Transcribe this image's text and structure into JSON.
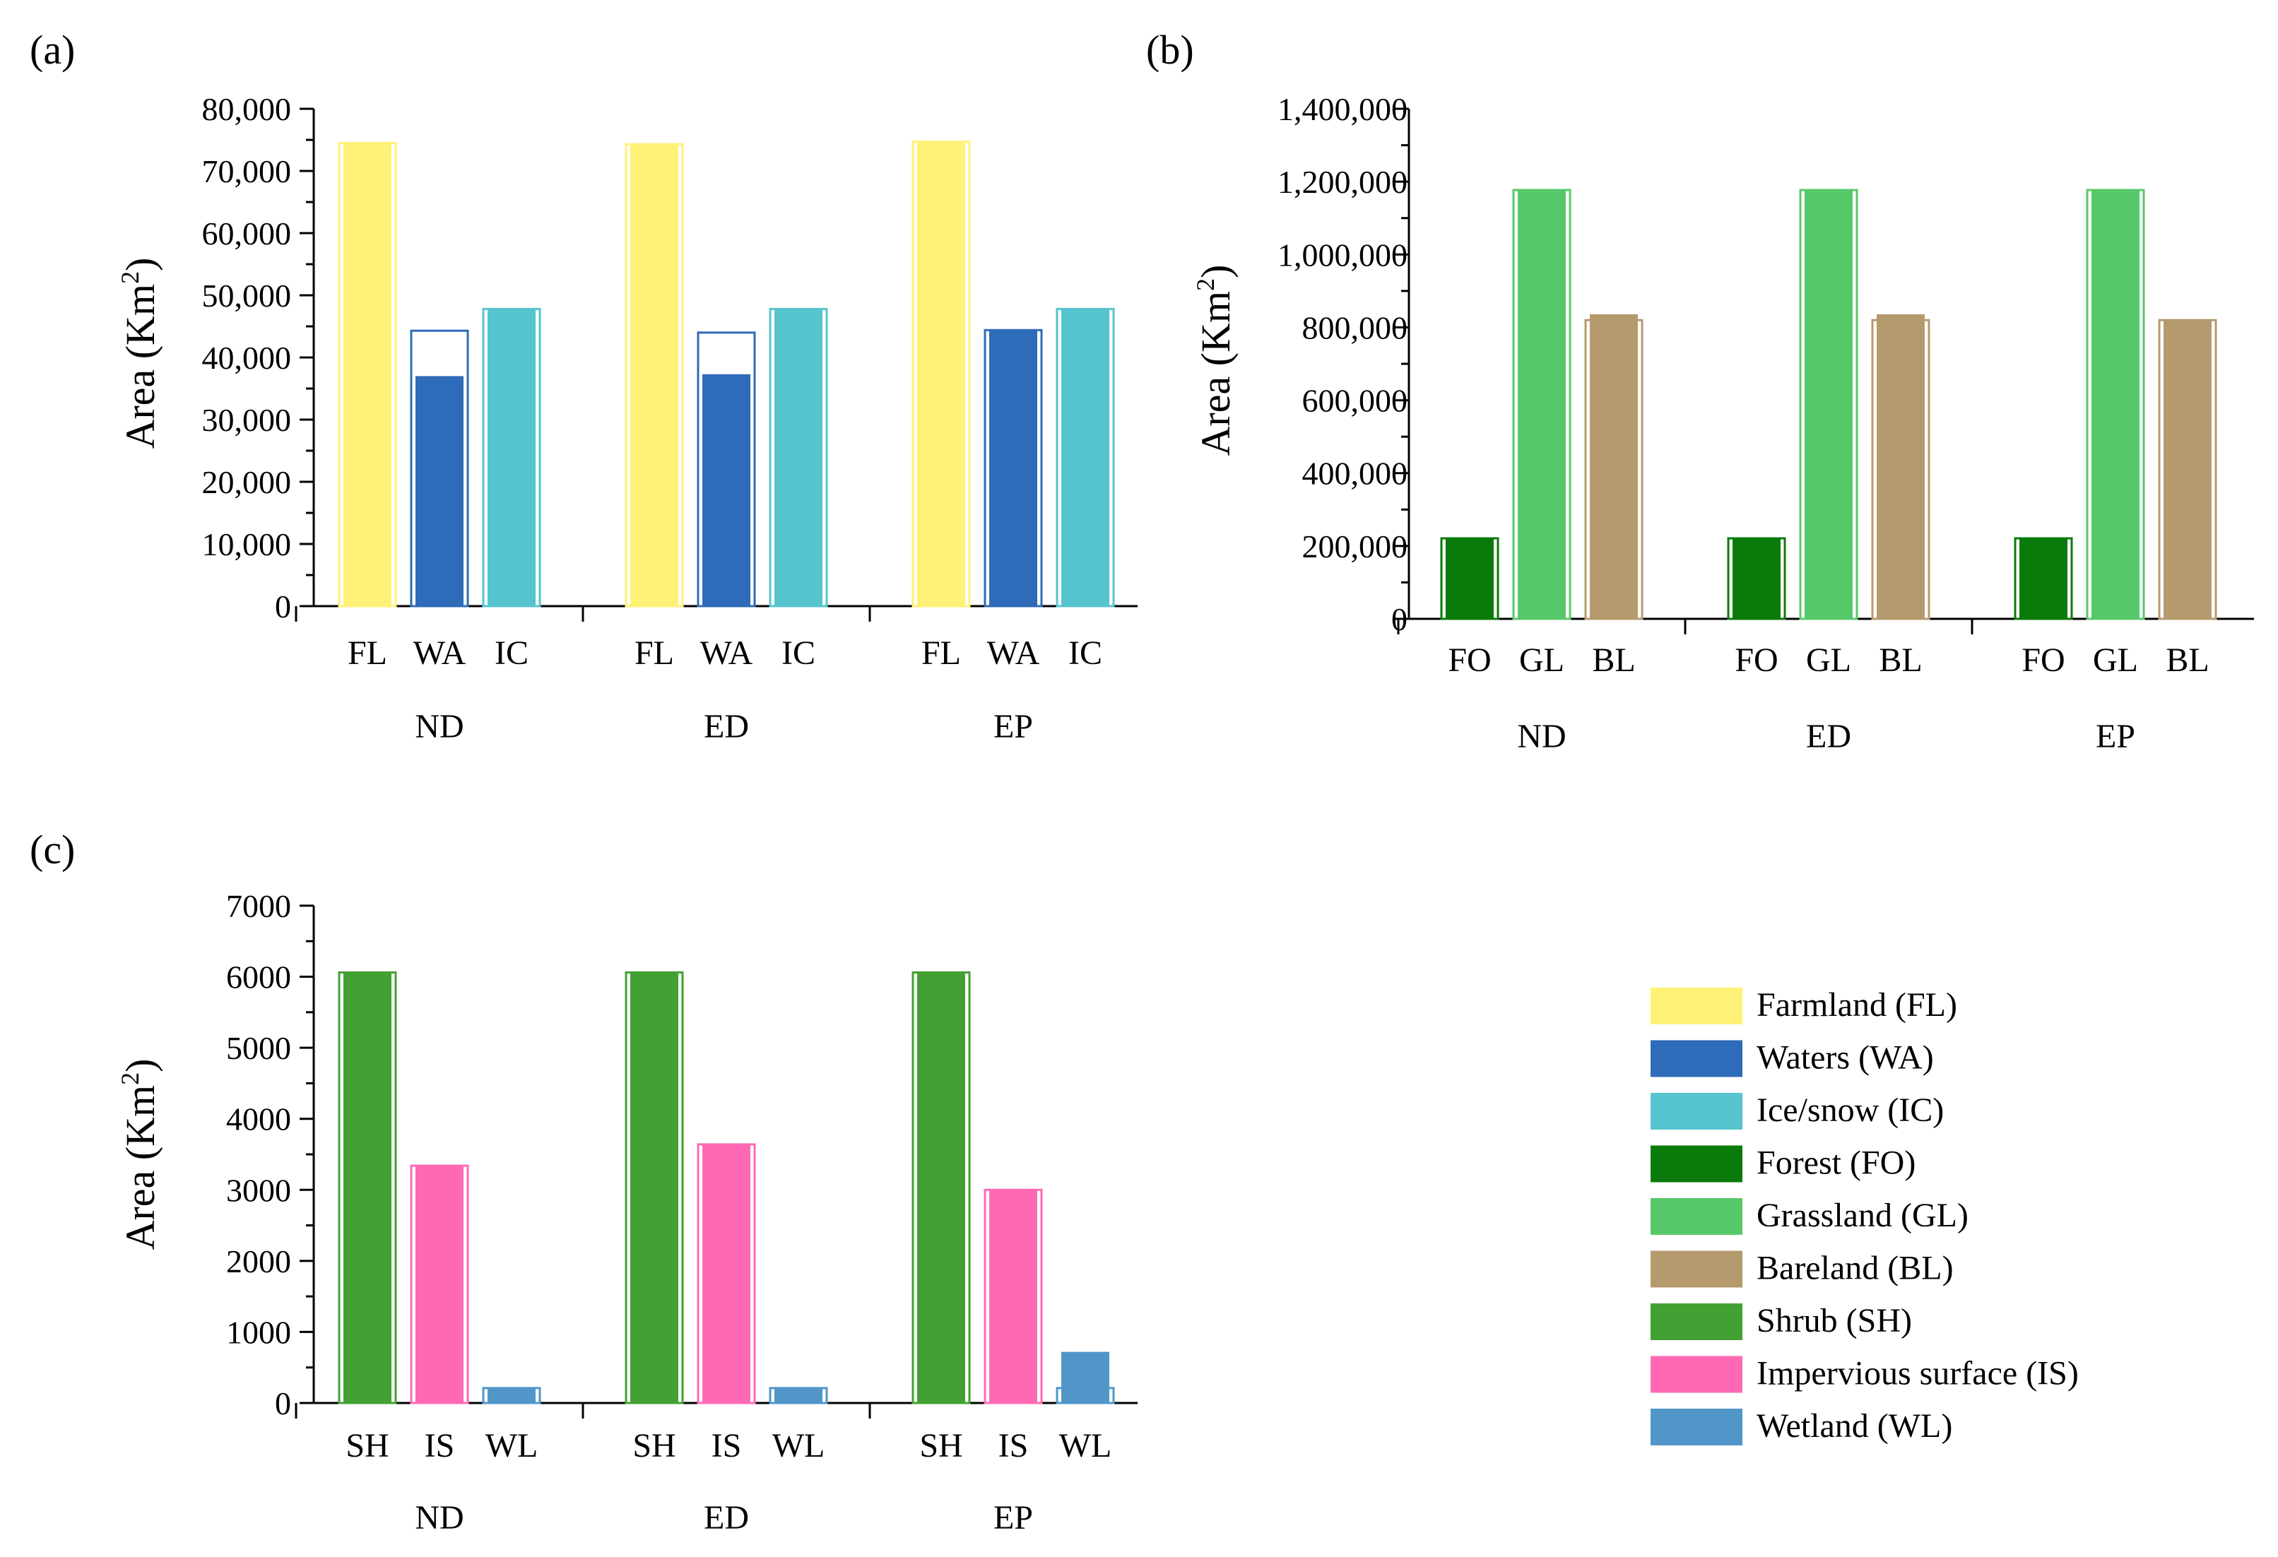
{
  "chart_data": [
    {
      "panel": "(a)",
      "type": "bar",
      "ylabel": "Area (Km²)",
      "ylabel_base": "Area (Km",
      "ylabel_sup": "2",
      "ylabel_close": ")",
      "ylim": [
        0,
        80000
      ],
      "yticks": [
        "0",
        "10,000",
        "20,000",
        "30,000",
        "40,000",
        "50,000",
        "60,000",
        "70,000",
        "80,000"
      ],
      "groups": [
        "ND",
        "ED",
        "EP"
      ],
      "categories": [
        "FL",
        "WA",
        "IC"
      ],
      "colors": [
        "#FFF176",
        "#2E6BB8",
        "#55C4CF"
      ],
      "outline": [
        [
          74500,
          44300,
          47800
        ],
        [
          74300,
          44000,
          47800
        ],
        [
          74700,
          44400,
          47800
        ]
      ],
      "fill": [
        [
          74500,
          37000,
          47800
        ],
        [
          74300,
          37300,
          47800
        ],
        [
          74700,
          44400,
          47800
        ]
      ],
      "grid": false
    },
    {
      "panel": "(b)",
      "type": "bar",
      "ylabel": "Area (Km²)",
      "ylabel_base": "Area (Km",
      "ylabel_sup": "2",
      "ylabel_close": ")",
      "ylim": [
        0,
        1400000
      ],
      "yticks": [
        "0",
        "200,000",
        "400,000",
        "600,000",
        "800,000",
        "1,000,000",
        "1,200,000",
        "1,400,000"
      ],
      "groups": [
        "ND",
        "ED",
        "EP"
      ],
      "categories": [
        "FO",
        "GL",
        "BL"
      ],
      "colors": [
        "#0A7A0A",
        "#57C86A",
        "#B59A6E"
      ],
      "outline": [
        [
          221000,
          1177000,
          820000
        ],
        [
          221000,
          1177000,
          820000
        ],
        [
          221000,
          1177000,
          820000
        ]
      ],
      "fill": [
        [
          221000,
          1177000,
          836000
        ],
        [
          221000,
          1177000,
          836000
        ],
        [
          221000,
          1177000,
          820000
        ]
      ],
      "grid": false
    },
    {
      "panel": "(c)",
      "type": "bar",
      "ylabel": "Area (Km²)",
      "ylabel_base": "Area (Km",
      "ylabel_sup": "2",
      "ylabel_close": ")",
      "ylim": [
        0,
        7000
      ],
      "yticks": [
        "0",
        "1000",
        "2000",
        "3000",
        "4000",
        "5000",
        "6000",
        "7000"
      ],
      "groups": [
        "ND",
        "ED",
        "EP"
      ],
      "categories": [
        "SH",
        "IS",
        "WL"
      ],
      "colors": [
        "#43A033",
        "#FF69B4",
        "#5096C8"
      ],
      "outline": [
        [
          6060,
          3340,
          210
        ],
        [
          6060,
          3640,
          210
        ],
        [
          6060,
          3000,
          210
        ]
      ],
      "fill": [
        [
          6060,
          3340,
          210
        ],
        [
          6060,
          3640,
          210
        ],
        [
          6060,
          3000,
          720
        ]
      ],
      "grid": false
    }
  ],
  "legend": {
    "placement": "bottom-right",
    "items": [
      {
        "label": "Farmland (FL)",
        "color": "#FFF176"
      },
      {
        "label": "Waters (WA)",
        "color": "#2E6BB8"
      },
      {
        "label": "Ice/snow (IC)",
        "color": "#55C4CF"
      },
      {
        "label": "Forest (FO)",
        "color": "#0A7A0A"
      },
      {
        "label": "Grassland (GL)",
        "color": "#57C86A"
      },
      {
        "label": "Bareland (BL)",
        "color": "#B59A6E"
      },
      {
        "label": "Shrub (SH)",
        "color": "#43A033"
      },
      {
        "label": "Impervious surface (IS)",
        "color": "#FF69B4"
      },
      {
        "label": "Wetland (WL)",
        "color": "#5096C8"
      }
    ]
  }
}
